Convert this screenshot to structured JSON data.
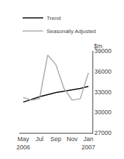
{
  "chart_data": {
    "type": "line",
    "categories": [
      "May\n2006",
      null,
      "Jul",
      null,
      "Sep",
      null,
      "Nov",
      null,
      "Jan\n2007"
    ],
    "series": [
      {
        "name": "Trend",
        "color": "#000000",
        "values": [
          31500,
          31900,
          32300,
          32600,
          32900,
          33100,
          33300,
          33500,
          33800
        ]
      },
      {
        "name": "Seasonally Adjusted",
        "color": "#aaaaaa",
        "values": [
          32200,
          31800,
          32000,
          38400,
          37000,
          33500,
          31800,
          32000,
          35800
        ]
      }
    ],
    "ylim": [
      27000,
      39000
    ],
    "yticks": [
      27000,
      30000,
      33000,
      36000,
      39000
    ],
    "annotations": [
      "$m"
    ],
    "legend": "upper left",
    "grid": false
  }
}
